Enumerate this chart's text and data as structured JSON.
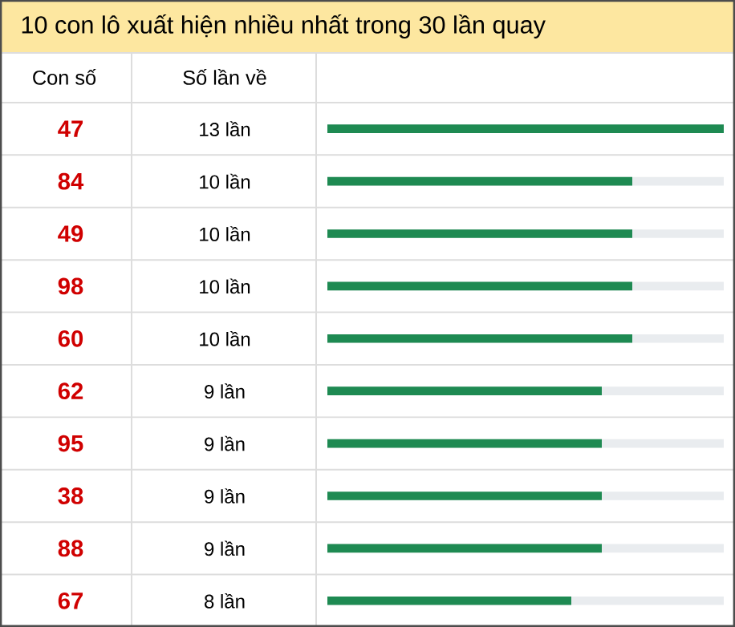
{
  "chart_data": {
    "type": "bar",
    "orientation": "horizontal",
    "title": "10 con lô xuất hiện nhiều nhất trong 30 lần quay",
    "annotations": [
      "Con số",
      "Số lần về"
    ],
    "categories": [
      "47",
      "84",
      "49",
      "98",
      "60",
      "62",
      "95",
      "38",
      "88",
      "67"
    ],
    "values": [
      13,
      10,
      10,
      10,
      10,
      9,
      9,
      9,
      9,
      8
    ],
    "value_labels": [
      "13 lần",
      "10 lần",
      "10 lần",
      "10 lần",
      "10 lần",
      "9 lần",
      "9 lần",
      "9 lần",
      "9 lần",
      "8 lần"
    ],
    "color": "#1e8a52",
    "tick_labels": "y"
  }
}
